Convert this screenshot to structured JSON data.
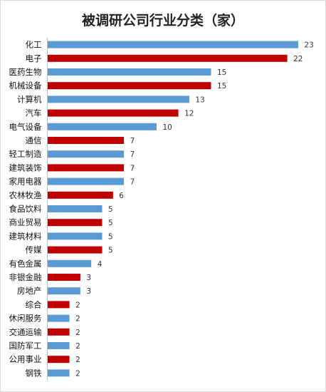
{
  "chart_data": {
    "type": "bar",
    "orientation": "horizontal",
    "title": "被调研公司行业分类（家）",
    "xlabel": "",
    "ylabel": "",
    "grid": false,
    "legend": "none",
    "xlim": [
      0,
      24
    ],
    "categories": [
      "化工",
      "电子",
      "医药生物",
      "机械设备",
      "计算机",
      "汽车",
      "电气设备",
      "通信",
      "轻工制造",
      "建筑装饰",
      "家用电器",
      "农林牧渔",
      "食品饮料",
      "商业贸易",
      "建筑材料",
      "传媒",
      "有色金属",
      "非银金融",
      "房地产",
      "综合",
      "休闲服务",
      "交通运输",
      "国防军工",
      "公用事业",
      "钢铁"
    ],
    "values": [
      23,
      22,
      15,
      15,
      13,
      12,
      10,
      7,
      7,
      7,
      7,
      6,
      5,
      5,
      5,
      5,
      4,
      3,
      3,
      2,
      2,
      2,
      2,
      2,
      2
    ],
    "bar_colors": [
      "#5b9bd5",
      "#c00000",
      "#5b9bd5",
      "#c00000",
      "#5b9bd5",
      "#c00000",
      "#5b9bd5",
      "#c00000",
      "#5b9bd5",
      "#c00000",
      "#5b9bd5",
      "#c00000",
      "#5b9bd5",
      "#c00000",
      "#5b9bd5",
      "#c00000",
      "#5b9bd5",
      "#c00000",
      "#5b9bd5",
      "#c00000",
      "#5b9bd5",
      "#c00000",
      "#5b9bd5",
      "#c00000",
      "#5b9bd5"
    ]
  }
}
